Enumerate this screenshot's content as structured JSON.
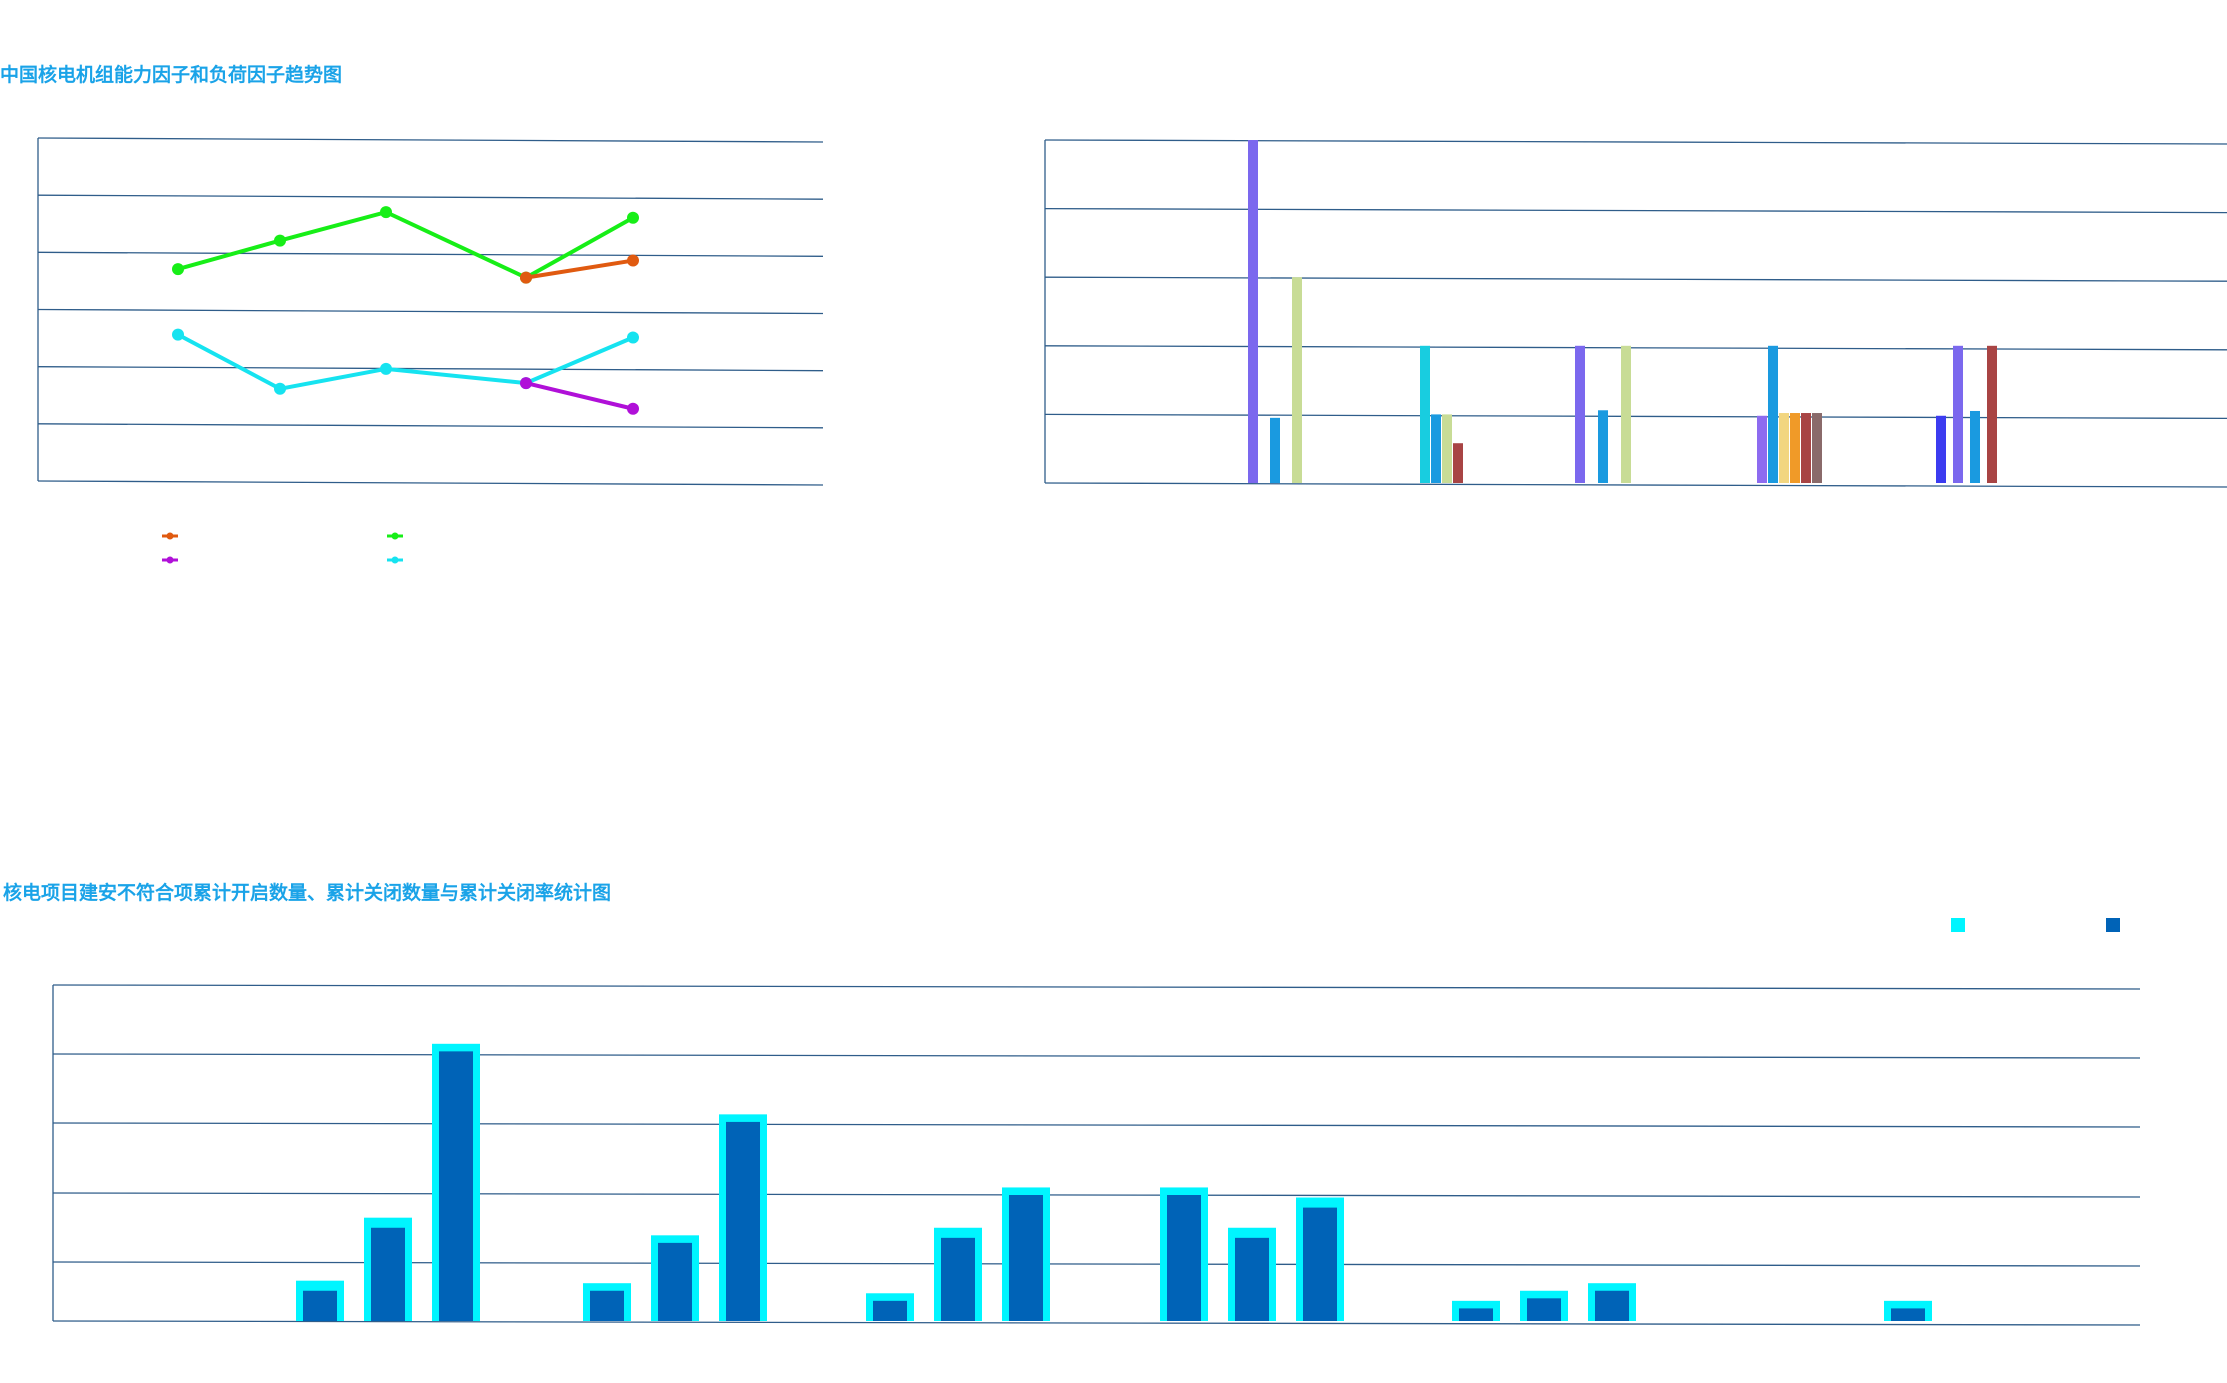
{
  "panels": {
    "trend_title": "中国核电机组能力因子和负荷因子趋势图",
    "ncr_title": "核电项目建安不符合项累计开启数量、累计关闭数量与累计关闭率统计图"
  },
  "colors": {
    "gridline": "#2f5d8a",
    "line_green": "#17ee17",
    "line_orange": "#e05a10",
    "line_cyan": "#16e3f0",
    "line_purple": "#b010d8",
    "ncr_open": "#00f5ff",
    "ncr_closed": "#0063b7"
  },
  "chart_data": [
    {
      "type": "line",
      "grid": true,
      "ylim": [
        0,
        6
      ],
      "x": [
        0,
        1,
        2,
        3,
        4
      ],
      "series": [
        {
          "key": "green",
          "color": "#17ee17",
          "values": [
            3.7,
            4.2,
            4.7,
            3.55,
            4.6
          ]
        },
        {
          "key": "orange",
          "color": "#e05a10",
          "x": [
            3,
            4
          ],
          "values": [
            3.55,
            3.85
          ]
        },
        {
          "key": "cyan",
          "color": "#16e3f0",
          "values": [
            2.55,
            1.6,
            1.95,
            1.7,
            2.5
          ]
        },
        {
          "key": "purple",
          "color": "#b010d8",
          "x": [
            3,
            4
          ],
          "values": [
            1.7,
            1.25
          ]
        }
      ],
      "legend": [
        {
          "key": "orange",
          "color": "#e05a10"
        },
        {
          "key": "green",
          "color": "#17ee17"
        },
        {
          "key": "purple",
          "color": "#b010d8"
        },
        {
          "key": "cyan",
          "color": "#16e3f0"
        }
      ]
    },
    {
      "type": "bar",
      "grid": true,
      "ylim": [
        0,
        5
      ],
      "groups": [
        {
          "bars": [
            {
              "color": "#7b68ee",
              "value": 5.0
            },
            {
              "color": "#1a9ae0",
              "value": 0.95
            },
            {
              "color": "#c8dc96",
              "value": 3.0
            }
          ]
        },
        {
          "bars": [
            {
              "color": "#18cde0",
              "value": 2.0
            },
            {
              "color": "#1a9ae0",
              "value": 1.0
            },
            {
              "color": "#c8dc96",
              "value": 1.0
            },
            {
              "color": "#a84444",
              "value": 0.58
            }
          ]
        },
        {
          "bars": [
            {
              "color": "#7b68ee",
              "value": 2.0
            },
            {
              "color": "#1a9ae0",
              "value": 1.06
            },
            {
              "color": "#c8dc96",
              "value": 2.0
            }
          ]
        },
        {
          "bars": [
            {
              "color": "#8d6bf0",
              "value": 0.98
            },
            {
              "color": "#1a9ae0",
              "value": 2.0
            },
            {
              "color": "#f2d680",
              "value": 1.02
            },
            {
              "color": "#f09a28",
              "value": 1.02
            },
            {
              "color": "#a84444",
              "value": 1.02
            },
            {
              "color": "#8a6a6a",
              "value": 1.02
            }
          ]
        },
        {
          "bars": [
            {
              "color": "#3c3cf0",
              "value": 0.98
            },
            {
              "color": "#7b68ee",
              "value": 2.0
            },
            {
              "color": "#1a9ae0",
              "value": 1.05
            },
            {
              "color": "#a84444",
              "value": 2.0
            }
          ]
        }
      ]
    },
    {
      "type": "bar",
      "grid": true,
      "ylim": [
        0,
        120
      ],
      "series": [
        {
          "key": "open",
          "color": "#00f5ff"
        },
        {
          "key": "closed",
          "color": "#0063b7"
        }
      ],
      "legend": [
        {
          "key": "open",
          "color": "#00f5ff"
        },
        {
          "key": "closed",
          "color": "#0063b7"
        }
      ],
      "groups": [
        {
          "pairs": [
            [
              16,
              12
            ],
            [
              41,
              37
            ],
            [
              110,
              107
            ]
          ]
        },
        {
          "pairs": [
            [
              15,
              12
            ],
            [
              34,
              31
            ],
            [
              82,
              79
            ]
          ]
        },
        {
          "pairs": [
            [
              11,
              8
            ],
            [
              37,
              33
            ],
            [
              53,
              50
            ]
          ]
        },
        {
          "pairs": [
            [
              53,
              50
            ],
            [
              37,
              33
            ],
            [
              49,
              45
            ]
          ]
        },
        {
          "pairs": [
            [
              8,
              5
            ],
            [
              12,
              9
            ],
            [
              15,
              12
            ]
          ]
        },
        {
          "pairs": [
            [
              8,
              5
            ]
          ]
        }
      ]
    }
  ]
}
